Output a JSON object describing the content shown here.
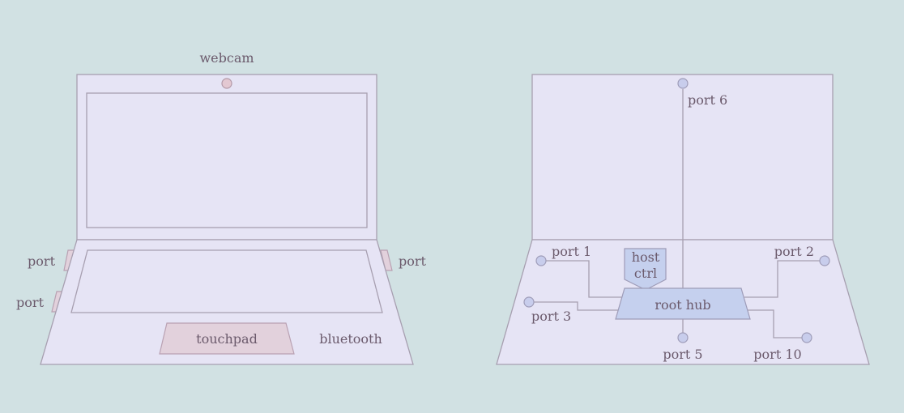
{
  "left_laptop": {
    "webcam_label": "webcam",
    "port_left_top": "port",
    "port_left_bottom": "port",
    "port_right": "port",
    "touchpad_label": "touchpad",
    "bluetooth_label": "bluetooth"
  },
  "right_laptop": {
    "host_ctrl_line1": "host",
    "host_ctrl_line2": "ctrl",
    "root_hub_label": "root hub",
    "port_6": "port 6",
    "port_1": "port 1",
    "port_2": "port 2",
    "port_3": "port 3",
    "port_5": "port 5",
    "port_10": "port 10"
  },
  "colors": {
    "background": "#d1e1e3",
    "body": "#e6e4f5",
    "outline": "#a79fb0",
    "touchpad": "#e2d1dc",
    "node": "#c8cdec",
    "text": "#6b5a6c"
  }
}
